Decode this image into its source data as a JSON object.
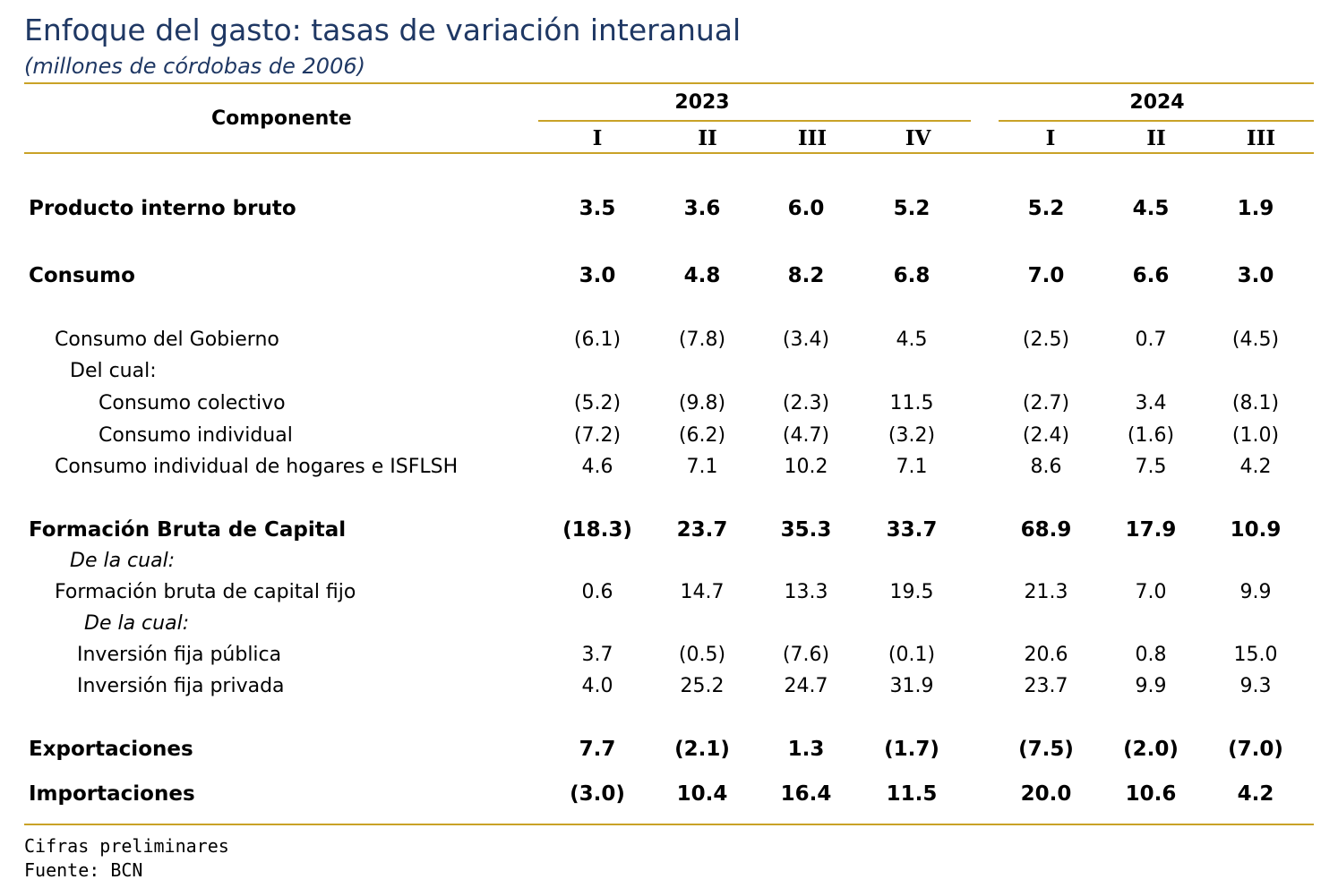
{
  "title": "Enfoque del gasto: tasas de variación interanual",
  "subtitle": "(millones de córdobas de 2006)",
  "header": {
    "component_label": "Componente",
    "years": [
      "2023",
      "2024"
    ],
    "quarters": [
      "I",
      "II",
      "III",
      "IV",
      "I",
      "II",
      "III"
    ]
  },
  "rows": [
    {
      "label": "Producto interno bruto",
      "values": [
        "3.5",
        "3.6",
        "6.0",
        "5.2",
        "5.2",
        "4.5",
        "1.9"
      ]
    },
    {
      "label": "Consumo",
      "values": [
        "3.0",
        "4.8",
        "8.2",
        "6.8",
        "7.0",
        "6.6",
        "3.0"
      ]
    },
    {
      "label": "Consumo del Gobierno",
      "values": [
        "(6.1)",
        "(7.8)",
        "(3.4)",
        "4.5",
        "(2.5)",
        "0.7",
        "(4.5)"
      ]
    },
    {
      "label": "Del cual:",
      "values": []
    },
    {
      "label": "Consumo colectivo",
      "values": [
        "(5.2)",
        "(9.8)",
        "(2.3)",
        "11.5",
        "(2.7)",
        "3.4",
        "(8.1)"
      ]
    },
    {
      "label": "Consumo individual",
      "values": [
        "(7.2)",
        "(6.2)",
        "(4.7)",
        "(3.2)",
        "(2.4)",
        "(1.6)",
        "(1.0)"
      ]
    },
    {
      "label": "Consumo individual de hogares e ISFLSH",
      "values": [
        "4.6",
        "7.1",
        "10.2",
        "7.1",
        "8.6",
        "7.5",
        "4.2"
      ]
    },
    {
      "label": "Formación Bruta de Capital",
      "values": [
        "(18.3)",
        "23.7",
        "35.3",
        "33.7",
        "68.9",
        "17.9",
        "10.9"
      ]
    },
    {
      "label": "De la cual:",
      "values": []
    },
    {
      "label": "Formación bruta de capital fijo",
      "values": [
        "0.6",
        "14.7",
        "13.3",
        "19.5",
        "21.3",
        "7.0",
        "9.9"
      ]
    },
    {
      "label": "De la cual:",
      "values": []
    },
    {
      "label": "Inversión fija pública",
      "values": [
        "3.7",
        "(0.5)",
        "(7.6)",
        "(0.1)",
        "20.6",
        "0.8",
        "15.0"
      ]
    },
    {
      "label": "Inversión fija privada",
      "values": [
        "4.0",
        "25.2",
        "24.7",
        "31.9",
        "23.7",
        "9.9",
        "9.3"
      ]
    },
    {
      "label": "Exportaciones",
      "values": [
        "7.7",
        "(2.1)",
        "1.3",
        "(1.7)",
        "(7.5)",
        "(2.0)",
        "(7.0)"
      ]
    },
    {
      "label": "Importaciones",
      "values": [
        "(3.0)",
        "10.4",
        "16.4",
        "11.5",
        "20.0",
        "10.6",
        "4.2"
      ]
    }
  ],
  "footer": {
    "note": "Cifras preliminares",
    "source": "Fuente: BCN"
  },
  "colors": {
    "title": "#1f3864",
    "rule": "#c9a227"
  }
}
